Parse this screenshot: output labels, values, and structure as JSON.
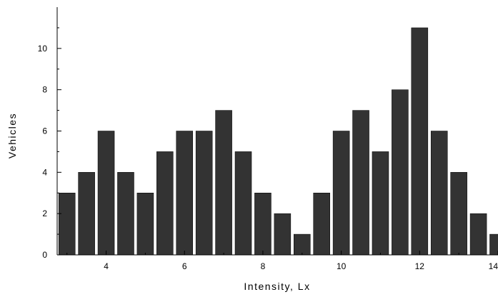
{
  "chart_data": {
    "type": "bar",
    "title": "",
    "xlabel": "Intensity, Lx",
    "ylabel": "Vehicles",
    "x": [
      3,
      3.5,
      4,
      4.5,
      5,
      5.5,
      6,
      6.5,
      7,
      7.5,
      8,
      8.5,
      9,
      9.5,
      10,
      10.5,
      11,
      11.5,
      12,
      12.5,
      13,
      13.5,
      14
    ],
    "values": [
      3,
      4,
      6,
      4,
      3,
      5,
      6,
      6,
      7,
      5,
      3,
      2,
      1,
      3,
      6,
      7,
      5,
      8,
      11,
      6,
      4,
      2,
      1
    ],
    "xlim": [
      2.75,
      14
    ],
    "ylim": [
      0,
      12
    ],
    "xticks": [
      4,
      6,
      8,
      10,
      12,
      14
    ],
    "xtick_labels": [
      "4",
      "6",
      "8",
      "10",
      "12",
      "14"
    ],
    "yticks": [
      0,
      2,
      4,
      6,
      8,
      10
    ],
    "ytick_labels": [
      "0",
      "2",
      "4",
      "6",
      "8",
      "10"
    ],
    "grid": false,
    "bar_color": "#333333"
  }
}
